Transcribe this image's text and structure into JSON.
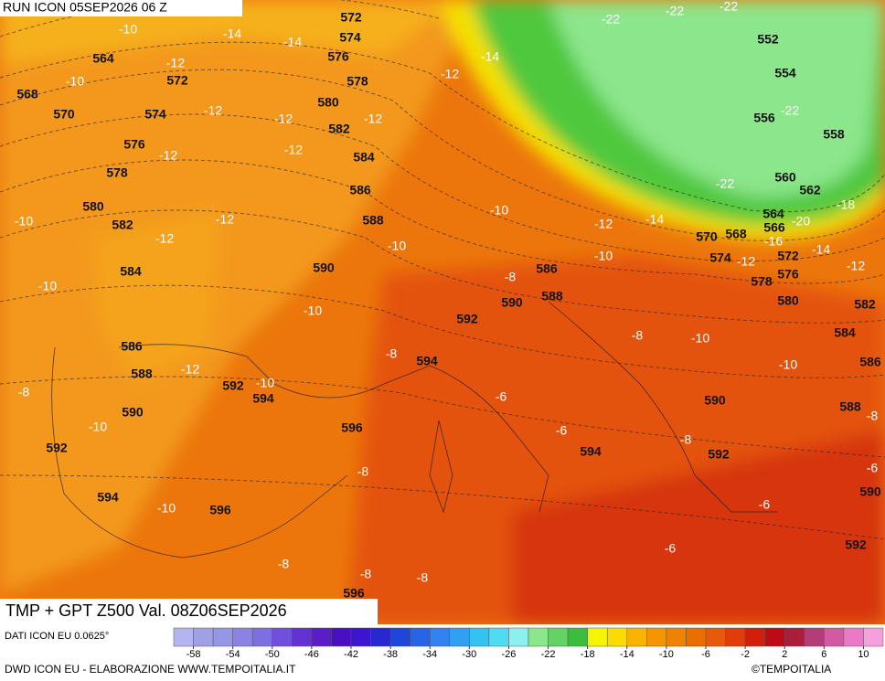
{
  "header": {
    "run": "RUN ICON 05SEP2026 06 Z"
  },
  "map": {
    "height_labels": [
      572,
      574,
      576,
      578,
      564,
      572,
      568,
      570,
      574,
      580,
      582,
      576,
      584,
      578,
      586,
      580,
      582,
      588,
      584,
      590,
      586,
      590,
      588,
      592,
      586,
      588,
      594,
      592,
      594,
      590,
      596,
      592,
      594,
      596,
      594,
      596,
      552,
      554,
      556,
      558,
      560,
      562,
      564,
      566,
      568,
      570,
      574,
      572,
      576,
      578,
      580,
      582,
      584,
      586,
      588,
      590,
      592,
      590,
      592
    ],
    "temperature_labels": [
      -10,
      -14,
      -14,
      -12,
      -10,
      -12,
      -14,
      -12,
      -12,
      -12,
      -12,
      -12,
      -10,
      -12,
      -12,
      -10,
      -10,
      -12,
      -14,
      -10,
      -10,
      -10,
      -8,
      -8,
      -8,
      -12,
      -10,
      -6,
      -6,
      -10,
      -8,
      -10,
      -10,
      -8,
      -8,
      -6,
      -6,
      -6,
      -10,
      -8,
      -8,
      -8,
      -8,
      -22,
      -22,
      -22,
      -22,
      -22,
      -20,
      -18,
      -16,
      -14,
      -12,
      -12
    ]
  },
  "footer": {
    "title": "TMP + GPT Z500 Val. 08Z06SEP2026",
    "source": "DATI ICON EU 0.0625°",
    "credit": "DWD ICON EU - ELABORAZIONE WWW.TEMPOITALIA.IT",
    "copyright": "©TEMPOITALIA"
  },
  "colorbar": {
    "colors": [
      "#b4b4f0",
      "#a0a0e6",
      "#9696e6",
      "#8c82e6",
      "#7d6ee1",
      "#7050dc",
      "#6432d2",
      "#5a1ec8",
      "#4b0fc3",
      "#3c14d2",
      "#2828d2",
      "#1e46dc",
      "#2864e6",
      "#3282f0",
      "#32a0f0",
      "#32c3f0",
      "#50dcf0",
      "#8cf0f0",
      "#8ce68c",
      "#64d264",
      "#3cbe3c",
      "#f5f500",
      "#fadc00",
      "#fab400",
      "#f59600",
      "#f08200",
      "#eb6e00",
      "#e65a0a",
      "#e13c0a",
      "#d21e0a",
      "#be0a14",
      "#aa1e3c",
      "#b43c78",
      "#d25aa0",
      "#eb78c8",
      "#f5a0dc"
    ],
    "ticks": [
      -58,
      -54,
      -50,
      -46,
      -42,
      -38,
      -34,
      -30,
      -26,
      -22,
      -18,
      -14,
      -10,
      -6,
      -2,
      2,
      6,
      10
    ]
  }
}
